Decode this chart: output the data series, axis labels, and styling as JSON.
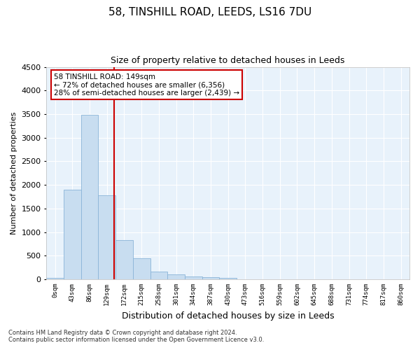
{
  "title_line1": "58, TINSHILL ROAD, LEEDS, LS16 7DU",
  "title_line2": "Size of property relative to detached houses in Leeds",
  "xlabel": "Distribution of detached houses by size in Leeds",
  "ylabel": "Number of detached properties",
  "bar_color": "#c8ddf0",
  "bar_edge_color": "#8ab4d8",
  "bg_color": "#e8f2fb",
  "grid_color": "#ffffff",
  "vline_color": "#cc0000",
  "vline_x": 3.43,
  "annotation_text": "58 TINSHILL ROAD: 149sqm\n← 72% of detached houses are smaller (6,356)\n28% of semi-detached houses are larger (2,439) →",
  "annotation_box_color": "#ffffff",
  "annotation_border_color": "#cc0000",
  "categories": [
    "0sqm",
    "43sqm",
    "86sqm",
    "129sqm",
    "172sqm",
    "215sqm",
    "258sqm",
    "301sqm",
    "344sqm",
    "387sqm",
    "430sqm",
    "473sqm",
    "516sqm",
    "559sqm",
    "602sqm",
    "645sqm",
    "688sqm",
    "731sqm",
    "774sqm",
    "817sqm",
    "860sqm"
  ],
  "values": [
    28,
    1900,
    3480,
    1780,
    830,
    450,
    170,
    100,
    60,
    50,
    30,
    0,
    0,
    0,
    0,
    0,
    0,
    0,
    0,
    0,
    0
  ],
  "ylim": [
    0,
    4500
  ],
  "yticks": [
    0,
    500,
    1000,
    1500,
    2000,
    2500,
    3000,
    3500,
    4000,
    4500
  ],
  "footer_line1": "Contains HM Land Registry data © Crown copyright and database right 2024.",
  "footer_line2": "Contains public sector information licensed under the Open Government Licence v3.0."
}
